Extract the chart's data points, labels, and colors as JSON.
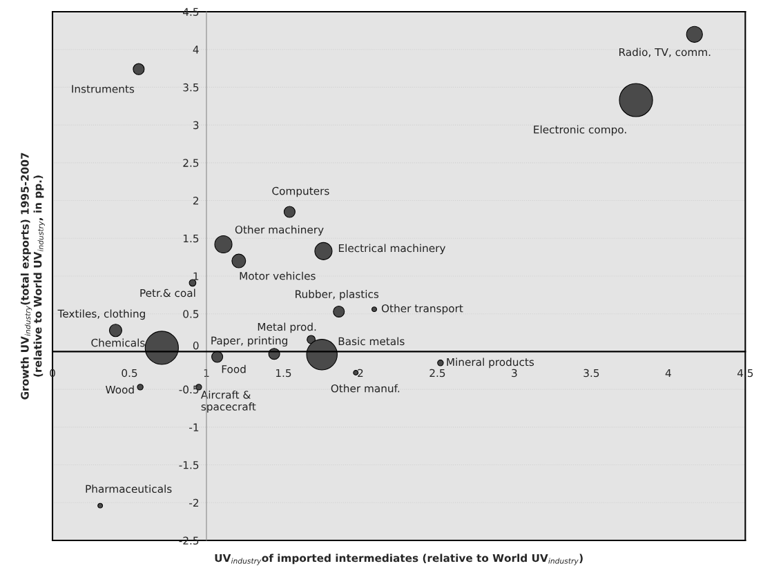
{
  "chart_data": {
    "type": "bubble",
    "xlabel": "UV$_{industry}$of imported intermediates (relative to World UV$_{industry}$)",
    "ylabel": "Growth UV$_{industry}$(total exports) 1995-2007\n(relative to World UV$_{industry}$, in pp.)",
    "x": [
      4.17,
      3.79,
      0.56,
      1.54,
      1.11,
      1.76,
      1.21,
      0.91,
      1.86,
      2.09,
      0.41,
      0.71,
      1.44,
      1.07,
      1.68,
      1.75,
      2.52,
      1.97,
      0.57,
      0.95,
      0.31
    ],
    "values": [
      4.2,
      3.33,
      3.74,
      1.85,
      1.42,
      1.33,
      1.2,
      0.91,
      0.53,
      0.56,
      0.28,
      0.05,
      -0.03,
      -0.07,
      0.16,
      -0.04,
      -0.15,
      -0.28,
      -0.47,
      -0.47,
      -2.04
    ],
    "sizes": [
      0.23,
      1,
      0.11,
      0.11,
      0.27,
      0.27,
      0.17,
      0.04,
      0.11,
      0.02,
      0.14,
      1,
      0.11,
      0.11,
      0.06,
      0.85,
      0.03,
      0.02,
      0.03,
      0.03,
      0.02
    ],
    "color": "#4a4a4a",
    "annotations": [
      {
        "text": "Radio, TV, comm.",
        "x": 4.17,
        "y": 4.2
      },
      {
        "text": "Electronic compo.",
        "x": 3.79,
        "y": 3.33
      },
      {
        "text": "Instruments",
        "x": 0.56,
        "y": 3.74
      },
      {
        "text": "Computers",
        "x": 1.54,
        "y": 1.85
      },
      {
        "text": "Other machinery",
        "x": 1.11,
        "y": 1.42
      },
      {
        "text": "Electrical machinery",
        "x": 1.76,
        "y": 1.33
      },
      {
        "text": "Motor vehicles",
        "x": 1.21,
        "y": 1.2
      },
      {
        "text": "Petr.& coal",
        "x": 0.91,
        "y": 0.91
      },
      {
        "text": "Rubber, plastics",
        "x": 1.86,
        "y": 0.53
      },
      {
        "text": "Other transport",
        "x": 2.09,
        "y": 0.56
      },
      {
        "text": "Textiles, clothing",
        "x": 0.41,
        "y": 0.28
      },
      {
        "text": "Chemicals",
        "x": 0.71,
        "y": 0.05
      },
      {
        "text": "Paper, printing",
        "x": 1.44,
        "y": -0.03
      },
      {
        "text": "Food",
        "x": 1.07,
        "y": -0.07
      },
      {
        "text": "Metal prod.",
        "x": 1.68,
        "y": 0.16
      },
      {
        "text": "Basic metals",
        "x": 1.75,
        "y": -0.04
      },
      {
        "text": "Mineral products",
        "x": 2.52,
        "y": -0.15
      },
      {
        "text": "Other manuf.",
        "x": 1.97,
        "y": -0.28
      },
      {
        "text": "Wood",
        "x": 0.57,
        "y": -0.47
      },
      {
        "text": "Aircraft &\nspacecraft",
        "x": 0.95,
        "y": -0.47
      },
      {
        "text": "Pharmaceuticals",
        "x": 0.31,
        "y": -2.04
      }
    ],
    "xlim": [
      0,
      4.5
    ],
    "ylim": [
      -2.5,
      4.5
    ],
    "xticks": [
      0,
      0.5,
      1,
      1.5,
      2,
      2.5,
      3,
      3.5,
      4,
      4.5
    ],
    "yticks": [
      -2.5,
      -2,
      -1.5,
      -1,
      -0.5,
      0,
      0.5,
      1,
      1.5,
      2,
      2.5,
      3,
      3.5,
      4,
      4.5
    ],
    "grid": "y",
    "legend": false,
    "marker": "circle"
  }
}
